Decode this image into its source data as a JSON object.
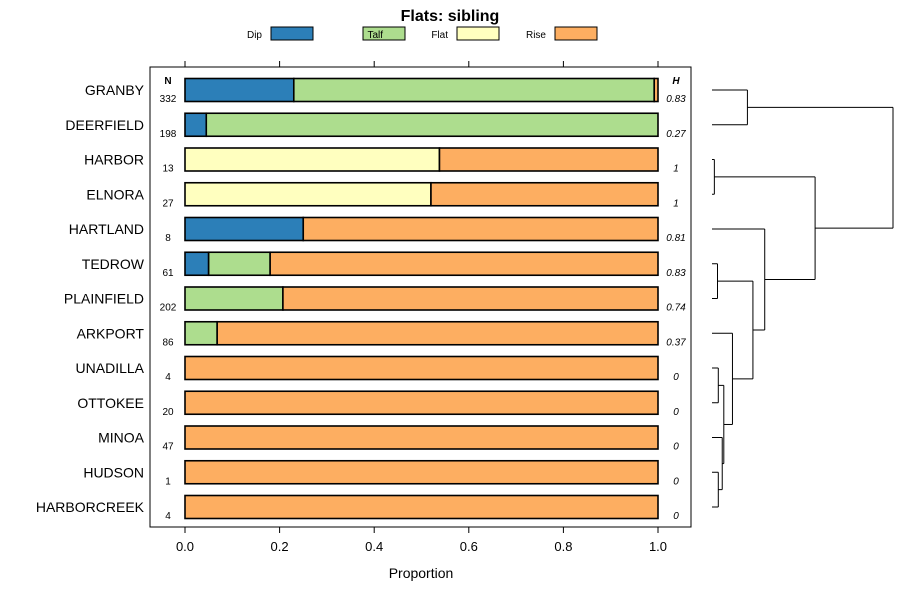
{
  "chart_data": {
    "type": "bar",
    "orientation": "horizontal",
    "stacked": true,
    "title": "Flats: sibling",
    "xlabel": "Proportion",
    "ylabel": "",
    "xlim": [
      0,
      1
    ],
    "x_ticks": [
      "0.0",
      "0.2",
      "0.4",
      "0.6",
      "0.8",
      "1.0"
    ],
    "n_header": "N",
    "h_header": "H",
    "legend": [
      {
        "name": "Dip",
        "color": "#2c7fb8"
      },
      {
        "name": "Talf",
        "color": "#addd8e"
      },
      {
        "name": "Flat",
        "color": "#ffffbf"
      },
      {
        "name": "Rise",
        "color": "#fdae61"
      }
    ],
    "categories": [
      "GRANBY",
      "DEERFIELD",
      "HARBOR",
      "ELNORA",
      "HARTLAND",
      "TEDROW",
      "PLAINFIELD",
      "ARKPORT",
      "UNADILLA",
      "OTTOKEE",
      "MINOA",
      "HUDSON",
      "HARBORCREEK"
    ],
    "n": [
      "332",
      "198",
      "13",
      "27",
      "8",
      "61",
      "202",
      "86",
      "4",
      "20",
      "47",
      "1",
      "4"
    ],
    "h": [
      "0.83",
      "0.27",
      "1",
      "1",
      "0.81",
      "0.83",
      "0.74",
      "0.37",
      "0",
      "0",
      "0",
      "0",
      "0"
    ],
    "series": [
      {
        "name": "Dip",
        "values": [
          0.23,
          0.045,
          0,
          0,
          0.25,
          0.05,
          0,
          0,
          0,
          0,
          0,
          0,
          0
        ]
      },
      {
        "name": "Talf",
        "values": [
          0.762,
          0.955,
          0,
          0,
          0,
          0.13,
          0.207,
          0.068,
          0,
          0,
          0,
          0,
          0
        ]
      },
      {
        "name": "Flat",
        "values": [
          0,
          0,
          0.538,
          0.52,
          0,
          0,
          0,
          0,
          0,
          0,
          0,
          0,
          0
        ]
      },
      {
        "name": "Rise",
        "values": [
          0.008,
          0,
          0.462,
          0.48,
          0.75,
          0.82,
          0.793,
          0.932,
          1,
          1,
          1,
          1,
          1
        ]
      }
    ],
    "dendrogram": {
      "type": "dendrogram",
      "merges": [
        {
          "left": "GRANBY",
          "right": "DEERFIELD",
          "height": 0.45
        },
        {
          "left": "HARBOR",
          "right": "ELNORA",
          "height": 0.03
        },
        {
          "left": "UNADILLA",
          "right": "OTTOKEE",
          "height": 0.08
        },
        {
          "left": "HUDSON",
          "right": "HARBORCREEK",
          "height": 0.08
        },
        {
          "left": "TEDROW",
          "right": "PLAINFIELD",
          "height": 0.07
        },
        {
          "left": "MINOA",
          "right": "HUDSON+HARBORCREEK",
          "height": 0.13
        },
        {
          "left": "UNADILLA+OTTOKEE",
          "right": "MINOA+HUDSON+HARBORCREEK",
          "height": 0.15
        },
        {
          "left": "ARKPORT",
          "right": "UNADILLA..HARBORCREEK",
          "height": 0.26
        },
        {
          "left": "TEDROW+PLAINFIELD",
          "right": "ARKPORT..HARBORCREEK",
          "height": 0.52
        },
        {
          "left": "HARTLAND",
          "right": "TEDROW..HARBORCREEK",
          "height": 0.67
        },
        {
          "left": "HARBOR+ELNORA",
          "right": "HARTLAND..HARBORCREEK",
          "height": 1.31
        },
        {
          "left": "GRANBY+DEERFIELD",
          "right": "HARBOR..HARBORCREEK",
          "height": 2.3
        }
      ]
    }
  }
}
